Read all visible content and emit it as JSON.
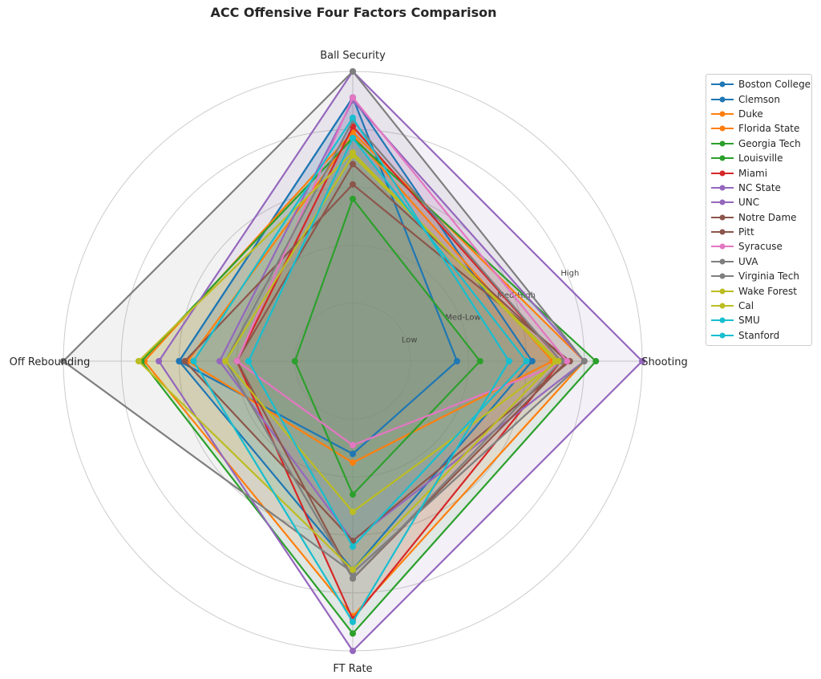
{
  "chart_data": {
    "type": "radar",
    "title": "ACC Offensive Four Factors Comparison",
    "axes": [
      "Ball Security",
      "Shooting",
      "FT Rate",
      "Off Rebounding"
    ],
    "rlim": [
      0,
      5
    ],
    "tick_labels": [
      "Low",
      "Med-Low",
      "Med-High",
      "High"
    ],
    "ticks": [
      1,
      2,
      3,
      4,
      5
    ],
    "tick_label_values": [
      1,
      2,
      3,
      4
    ],
    "grid": true,
    "legend_position": "upper-right",
    "series": [
      {
        "name": "Boston College",
        "color": "#1f77b4",
        "values": [
          4.55,
          1.8,
          1.6,
          3.0
        ]
      },
      {
        "name": "Clemson",
        "color": "#1f77b4",
        "values": [
          4.55,
          3.1,
          3.6,
          3.0
        ]
      },
      {
        "name": "Duke",
        "color": "#ff7f0e",
        "values": [
          3.9,
          3.45,
          1.75,
          2.85
        ]
      },
      {
        "name": "Florida State",
        "color": "#ff7f0e",
        "values": [
          3.95,
          4.0,
          4.4,
          3.6
        ]
      },
      {
        "name": "Georgia Tech",
        "color": "#2ca02c",
        "values": [
          2.8,
          2.2,
          2.3,
          1.0
        ]
      },
      {
        "name": "Louisville",
        "color": "#2ca02c",
        "values": [
          3.85,
          4.2,
          4.7,
          3.65
        ]
      },
      {
        "name": "Miami",
        "color": "#d62728",
        "values": [
          4.05,
          3.6,
          4.45,
          2.0
        ]
      },
      {
        "name": "NC State",
        "color": "#9467bd",
        "values": [
          4.5,
          4.0,
          3.1,
          2.3
        ]
      },
      {
        "name": "UNC",
        "color": "#9467bd",
        "values": [
          5.0,
          5.0,
          5.0,
          3.35
        ]
      },
      {
        "name": "Notre Dame",
        "color": "#8c564b",
        "values": [
          3.05,
          3.75,
          3.1,
          2.9
        ]
      },
      {
        "name": "Pitt",
        "color": "#8c564b",
        "values": [
          3.4,
          3.7,
          3.75,
          2.0
        ]
      },
      {
        "name": "Syracuse",
        "color": "#e377c2",
        "values": [
          4.55,
          3.7,
          1.45,
          2.0
        ]
      },
      {
        "name": "UVA",
        "color": "#7f7f7f",
        "values": [
          5.0,
          4.0,
          3.65,
          5.0
        ]
      },
      {
        "name": "Virginia Tech",
        "color": "#7f7f7f",
        "values": [
          4.15,
          3.6,
          3.75,
          2.2
        ]
      },
      {
        "name": "Wake Forest",
        "color": "#bcbd22",
        "values": [
          3.55,
          3.55,
          2.6,
          2.2
        ]
      },
      {
        "name": "Cal",
        "color": "#bcbd22",
        "values": [
          3.6,
          3.5,
          3.6,
          3.7
        ]
      },
      {
        "name": "SMU",
        "color": "#17becf",
        "values": [
          4.2,
          2.7,
          4.5,
          2.75
        ]
      },
      {
        "name": "Stanford",
        "color": "#17becf",
        "values": [
          3.85,
          3.0,
          3.2,
          1.8
        ]
      }
    ]
  }
}
